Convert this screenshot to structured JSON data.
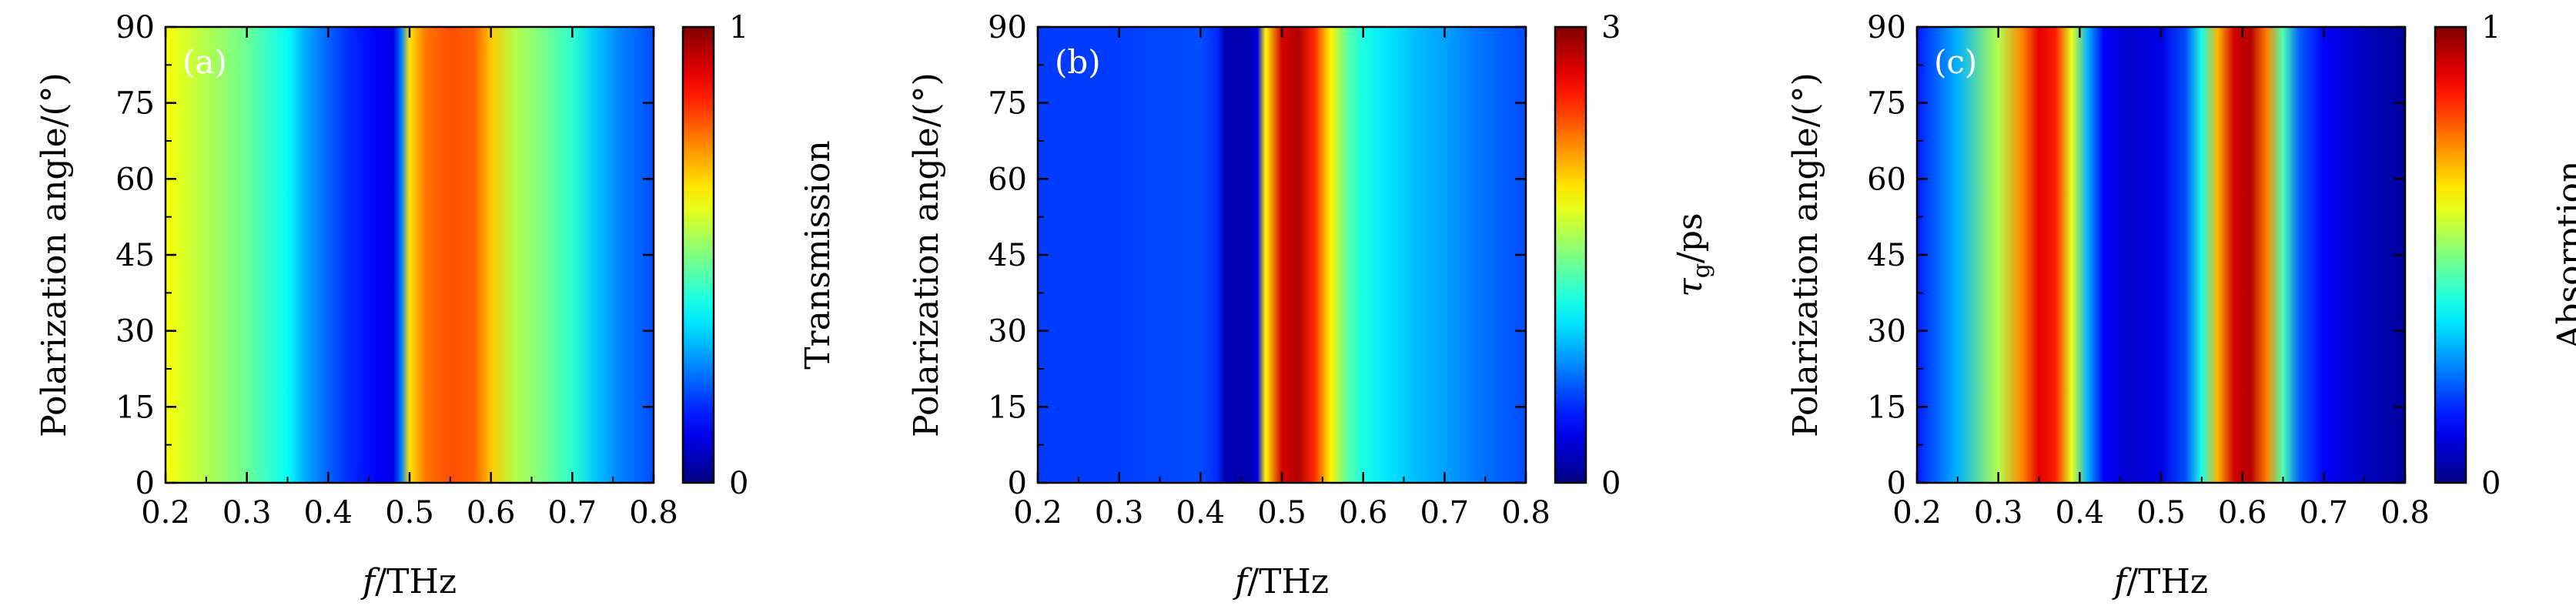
{
  "chart_data": [
    {
      "type": "heatmap",
      "panel_label": "(a)",
      "xlabel_italic": "f",
      "xlabel_rest": "/THz",
      "ylabel": "Polarization angle/(°)",
      "xlim": [
        0.2,
        0.8
      ],
      "ylim": [
        0,
        90
      ],
      "xticks": [
        "0.2",
        "0.3",
        "0.4",
        "0.5",
        "0.6",
        "0.7",
        "0.8"
      ],
      "yticks": [
        "0",
        "15",
        "30",
        "45",
        "60",
        "75",
        "90"
      ],
      "colorbar": {
        "label": "Transmission",
        "min": "0",
        "max": "1",
        "range": [
          0,
          1
        ]
      },
      "note": "values independent of polarization angle",
      "frequency": [
        0.2,
        0.25,
        0.3,
        0.35,
        0.37,
        0.4,
        0.43,
        0.46,
        0.48,
        0.49,
        0.5,
        0.52,
        0.55,
        0.58,
        0.6,
        0.63,
        0.66,
        0.7,
        0.73,
        0.76,
        0.8
      ],
      "values": [
        0.62,
        0.55,
        0.48,
        0.38,
        0.3,
        0.22,
        0.16,
        0.12,
        0.1,
        0.25,
        0.65,
        0.76,
        0.8,
        0.78,
        0.68,
        0.55,
        0.5,
        0.42,
        0.32,
        0.25,
        0.2
      ]
    },
    {
      "type": "heatmap",
      "panel_label": "(b)",
      "xlabel_italic": "f",
      "xlabel_rest": "/THz",
      "ylabel": "Polarization angle/(°)",
      "xlim": [
        0.2,
        0.8
      ],
      "ylim": [
        0,
        90
      ],
      "xticks": [
        "0.2",
        "0.3",
        "0.4",
        "0.5",
        "0.6",
        "0.7",
        "0.8"
      ],
      "yticks": [
        "0",
        "15",
        "30",
        "45",
        "60",
        "75",
        "90"
      ],
      "colorbar": {
        "label_symbol": "τ",
        "label_sub": "g",
        "label_rest": "/ps",
        "min": "0",
        "max": "3",
        "range": [
          0,
          3
        ]
      },
      "note": "values independent of polarization angle",
      "frequency": [
        0.2,
        0.3,
        0.4,
        0.42,
        0.43,
        0.46,
        0.47,
        0.48,
        0.5,
        0.52,
        0.54,
        0.56,
        0.58,
        0.6,
        0.63,
        0.66,
        0.7,
        0.75,
        0.8
      ],
      "values": [
        0.55,
        0.55,
        0.6,
        0.5,
        0.15,
        0.15,
        0.3,
        1.9,
        2.75,
        2.85,
        2.5,
        1.9,
        1.4,
        1.2,
        1.05,
        0.95,
        0.85,
        0.7,
        0.6
      ]
    },
    {
      "type": "heatmap",
      "panel_label": "(c)",
      "xlabel_italic": "f",
      "xlabel_rest": "/THz",
      "ylabel": "Polarization angle/(°)",
      "xlim": [
        0.2,
        0.8
      ],
      "ylim": [
        0,
        90
      ],
      "xticks": [
        "0.2",
        "0.3",
        "0.4",
        "0.5",
        "0.6",
        "0.7",
        "0.8"
      ],
      "yticks": [
        "0",
        "15",
        "30",
        "45",
        "60",
        "75",
        "90"
      ],
      "colorbar": {
        "label": "Absorption",
        "min": "0",
        "max": "1",
        "range": [
          0,
          1
        ]
      },
      "note": "values independent of polarization angle",
      "frequency": [
        0.2,
        0.25,
        0.3,
        0.33,
        0.35,
        0.37,
        0.39,
        0.41,
        0.43,
        0.46,
        0.5,
        0.53,
        0.55,
        0.57,
        0.59,
        0.61,
        0.63,
        0.65,
        0.67,
        0.7,
        0.75,
        0.8
      ],
      "values": [
        0.15,
        0.3,
        0.55,
        0.75,
        0.9,
        0.85,
        0.6,
        0.3,
        0.12,
        0.08,
        0.1,
        0.2,
        0.4,
        0.7,
        0.92,
        0.95,
        0.75,
        0.45,
        0.22,
        0.12,
        0.06,
        0.03
      ]
    }
  ]
}
